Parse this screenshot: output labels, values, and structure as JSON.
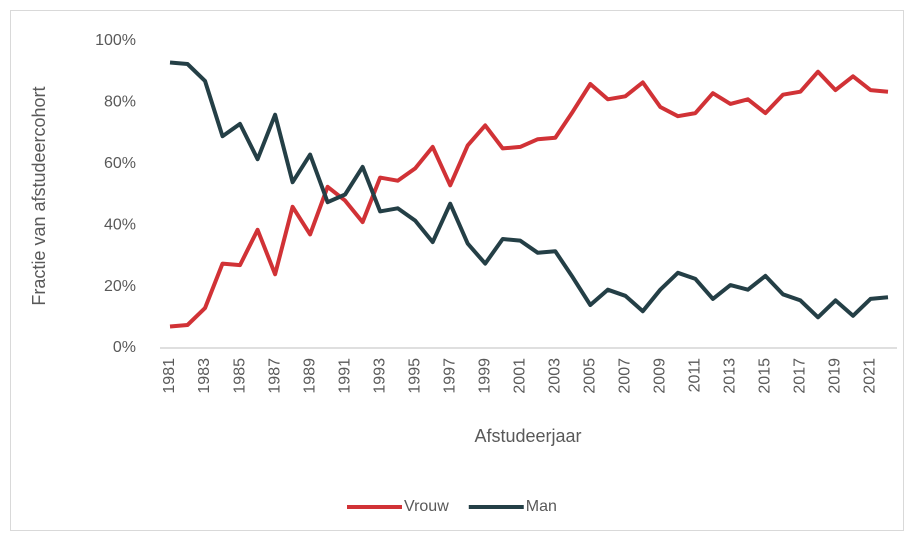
{
  "chart_data": {
    "type": "line",
    "categories": [
      "1981",
      null,
      "1983",
      null,
      "1985",
      null,
      "1987",
      null,
      "1989",
      null,
      "1991",
      null,
      "1993",
      null,
      "1995",
      null,
      "1997",
      null,
      "1999",
      null,
      "2001",
      null,
      "2003",
      null,
      "2005",
      null,
      "2007",
      null,
      "2009",
      null,
      "2011",
      null,
      "2013",
      null,
      "2015",
      null,
      "2017",
      null,
      "2019",
      null,
      "2021",
      null
    ],
    "series": [
      {
        "name": "Vrouw",
        "color": "#d13236",
        "values": [
          7,
          7.5,
          13,
          27.5,
          27,
          38.5,
          24,
          46,
          37,
          52.5,
          48,
          41,
          55.5,
          54.5,
          58.5,
          65.5,
          53,
          66,
          72.5,
          65,
          65.5,
          68,
          68.5,
          77,
          86,
          81,
          82,
          86.5,
          78.5,
          75.5,
          76.5,
          83,
          79.5,
          81,
          76.5,
          82.5,
          83.5,
          90,
          84,
          88.5,
          84,
          83.5
        ]
      },
      {
        "name": "Man",
        "color": "#243f46",
        "values": [
          93,
          92.5,
          87,
          69,
          73,
          61.5,
          76,
          54,
          63,
          47.5,
          50,
          59,
          44.5,
          45.5,
          41.5,
          34.5,
          47,
          34,
          27.5,
          35.5,
          35,
          31,
          31.5,
          23,
          14,
          19,
          17,
          12,
          19,
          24.5,
          22.5,
          16,
          20.5,
          19,
          23.5,
          17.5,
          15.5,
          10,
          15.5,
          10.5,
          16,
          16.5
        ]
      }
    ],
    "x_label": "Afstudeerjaar",
    "y_label": "Fractie van afstudeercohort",
    "ylim": [
      0,
      100
    ],
    "yticks": [
      {
        "value": 0,
        "label": "0%"
      },
      {
        "value": 20,
        "label": "20%"
      },
      {
        "value": 40,
        "label": "40%"
      },
      {
        "value": 60,
        "label": "60%"
      },
      {
        "value": 80,
        "label": "80%"
      },
      {
        "value": 100,
        "label": "100%"
      }
    ],
    "grid": false,
    "legend": "bottom"
  }
}
